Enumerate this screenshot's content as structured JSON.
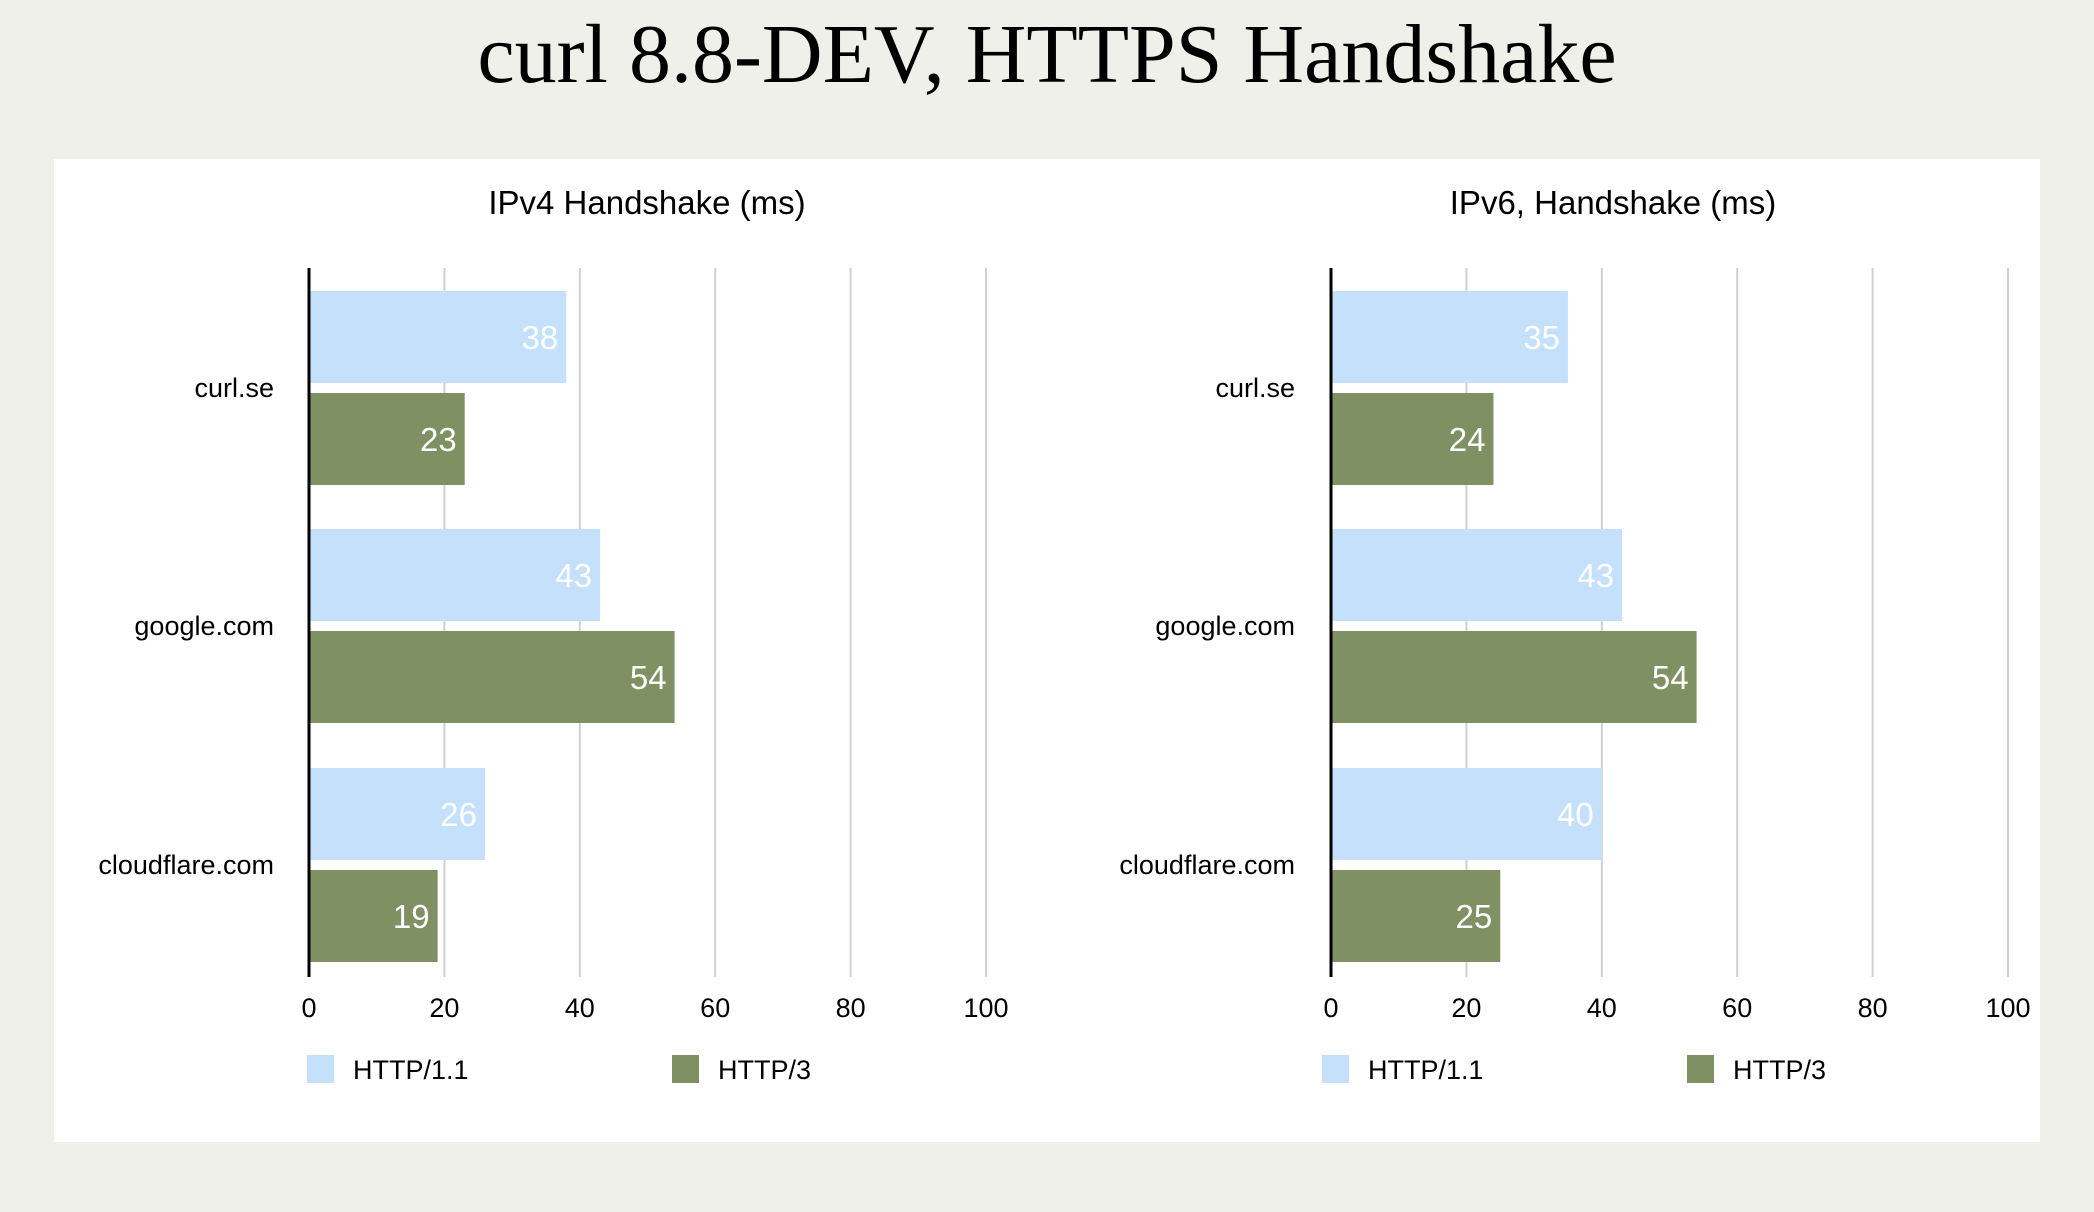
{
  "page": {
    "title": "curl 8.8-DEV, HTTPS Handshake"
  },
  "colors": {
    "background": "#f0f0eb",
    "panel": "#ffffff",
    "http11": "#c5e0fb",
    "http3": "#7f9163",
    "gridline": "#d0d0d0",
    "axis": "#000000",
    "bar_label": "#ffffff"
  },
  "chart_data": [
    {
      "type": "bar",
      "orientation": "horizontal",
      "title": "IPv4 Handshake (ms)",
      "categories": [
        "curl.se",
        "google.com",
        "cloudflare.com"
      ],
      "series": [
        {
          "name": "HTTP/1.1",
          "values": [
            38,
            43,
            26
          ]
        },
        {
          "name": "HTTP/3",
          "values": [
            23,
            54,
            19
          ]
        }
      ],
      "xlim": [
        0,
        100
      ],
      "xticks": [
        0,
        20,
        40,
        60,
        80,
        100
      ],
      "grid": true,
      "legend": "bottom",
      "data_labels": true
    },
    {
      "type": "bar",
      "orientation": "horizontal",
      "title": "IPv6, Handshake (ms)",
      "categories": [
        "curl.se",
        "google.com",
        "cloudflare.com"
      ],
      "series": [
        {
          "name": "HTTP/1.1",
          "values": [
            35,
            43,
            40
          ]
        },
        {
          "name": "HTTP/3",
          "values": [
            24,
            54,
            25
          ]
        }
      ],
      "xlim": [
        0,
        100
      ],
      "xticks": [
        0,
        20,
        40,
        60,
        80,
        100
      ],
      "grid": true,
      "legend": "bottom",
      "data_labels": true
    }
  ]
}
